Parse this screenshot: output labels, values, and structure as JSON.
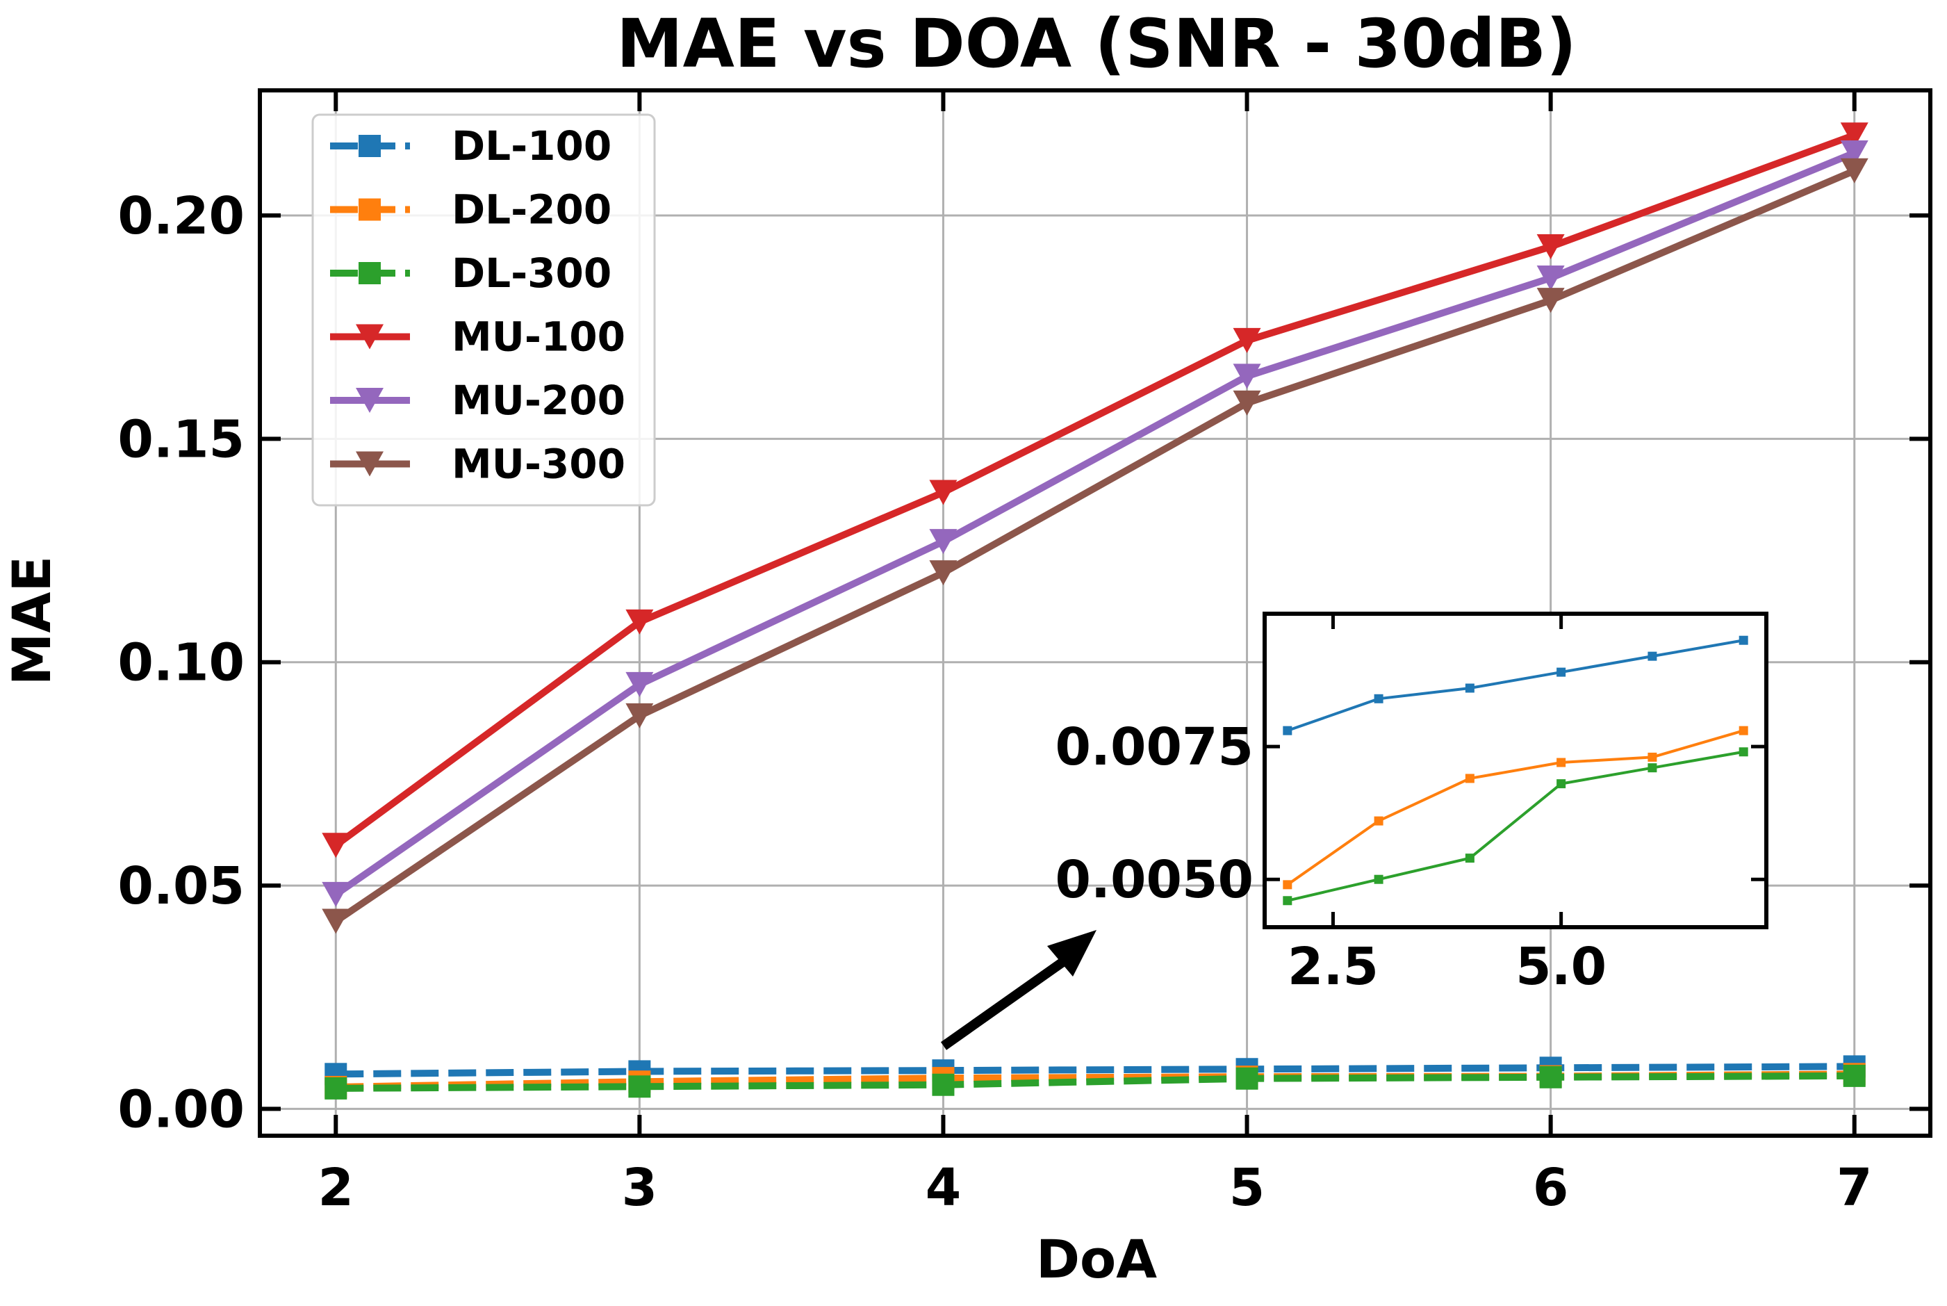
{
  "chart_data": [
    {
      "type": "line",
      "title": "MAE vs DOA (SNR - 30dB)",
      "xlabel": "DoA",
      "ylabel": "MAE",
      "x": [
        2,
        3,
        4,
        5,
        6,
        7
      ],
      "xlim": [
        1.75,
        7.25
      ],
      "ylim": [
        -0.006,
        0.228
      ],
      "xticks": [
        "2",
        "3",
        "4",
        "5",
        "6",
        "7"
      ],
      "yticks": [
        "0.00",
        "0.05",
        "0.10",
        "0.15",
        "0.20"
      ],
      "ytick_values": [
        0,
        0.05,
        0.1,
        0.15,
        0.2
      ],
      "grid": true,
      "legend_position": "top-left",
      "series": [
        {
          "name": "DL-100",
          "color": "#1f77b4",
          "style": "dashed",
          "marker": "square",
          "values": [
            0.0078,
            0.0084,
            0.0086,
            0.0089,
            0.0092,
            0.0095
          ]
        },
        {
          "name": "DL-200",
          "color": "#ff7f0e",
          "style": "dashed",
          "marker": "square",
          "values": [
            0.0049,
            0.0061,
            0.0069,
            0.0072,
            0.0073,
            0.0078
          ]
        },
        {
          "name": "DL-300",
          "color": "#2ca02c",
          "style": "dashed",
          "marker": "square",
          "values": [
            0.0046,
            0.005,
            0.0054,
            0.0068,
            0.0071,
            0.0074
          ]
        },
        {
          "name": "MU-100",
          "color": "#d62728",
          "style": "solid",
          "marker": "triangle-down",
          "values": [
            0.059,
            0.109,
            0.138,
            0.172,
            0.193,
            0.218
          ]
        },
        {
          "name": "MU-200",
          "color": "#9467bd",
          "style": "solid",
          "marker": "triangle-down",
          "values": [
            0.048,
            0.095,
            0.127,
            0.164,
            0.186,
            0.214
          ]
        },
        {
          "name": "MU-300",
          "color": "#8c564b",
          "style": "solid",
          "marker": "triangle-down",
          "values": [
            0.042,
            0.088,
            0.12,
            0.158,
            0.181,
            0.21
          ]
        }
      ]
    },
    {
      "type": "line",
      "title": "",
      "x": [
        2,
        3,
        4,
        5,
        6,
        7
      ],
      "xlim": [
        1.75,
        7.25
      ],
      "ylim": [
        0.0041,
        0.01
      ],
      "xticks": [
        "2.5",
        "5.0"
      ],
      "xtick_values": [
        2.5,
        5.0
      ],
      "yticks": [
        "0.0050",
        "0.0075"
      ],
      "ytick_values": [
        0.005,
        0.0075
      ],
      "grid": false,
      "series_ref": [
        "DL-100",
        "DL-200",
        "DL-300"
      ],
      "values": [
        [
          0.0078,
          0.0084,
          0.0086,
          0.0089,
          0.0092,
          0.0095
        ],
        [
          0.0049,
          0.0061,
          0.0069,
          0.0072,
          0.0073,
          0.0078
        ],
        [
          0.0046,
          0.005,
          0.0054,
          0.0068,
          0.0071,
          0.0074
        ]
      ],
      "colors": [
        "#1f77b4",
        "#ff7f0e",
        "#2ca02c"
      ]
    }
  ]
}
